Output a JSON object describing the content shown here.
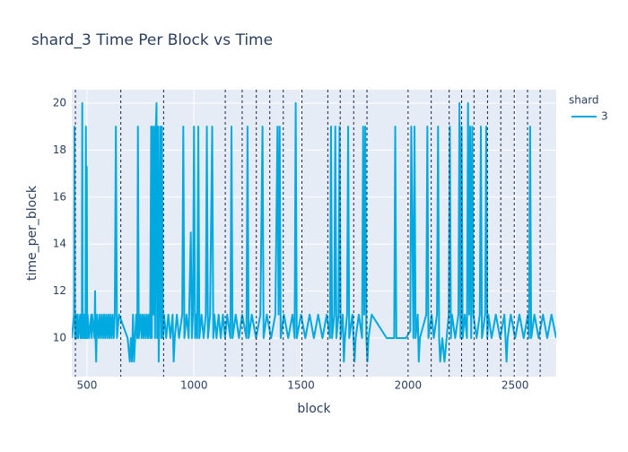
{
  "chart_data": {
    "type": "line",
    "title": "shard_3 Time Per Block vs Time",
    "x_label": "block",
    "y_label": "time_per_block",
    "legend_title": "shard",
    "legend": "top-right",
    "grid": true,
    "x": [
      429,
      440,
      442,
      444,
      447,
      449,
      451,
      455,
      457,
      459,
      468,
      470,
      472,
      476,
      478,
      480,
      486,
      488,
      490,
      493,
      495,
      497,
      499,
      501,
      503,
      510,
      520,
      522,
      524,
      535,
      538,
      540,
      543,
      545,
      548,
      555,
      560,
      565,
      570,
      575,
      580,
      585,
      590,
      595,
      600,
      605,
      610,
      615,
      620,
      625,
      630,
      635,
      640,
      650,
      690,
      700,
      705,
      710,
      715,
      720,
      725,
      730,
      735,
      738,
      742,
      750,
      755,
      760,
      765,
      770,
      775,
      780,
      785,
      790,
      795,
      800,
      803,
      806,
      810,
      815,
      818,
      822,
      825,
      828,
      832,
      835,
      838,
      842,
      847,
      850,
      855,
      860,
      870,
      880,
      890,
      900,
      905,
      910,
      920,
      930,
      945,
      950,
      955,
      965,
      975,
      985,
      990,
      995,
      1000,
      1005,
      1010,
      1015,
      1020,
      1025,
      1035,
      1045,
      1055,
      1060,
      1065,
      1075,
      1085,
      1090,
      1095,
      1105,
      1115,
      1125,
      1135,
      1145,
      1155,
      1170,
      1175,
      1180,
      1195,
      1210,
      1225,
      1245,
      1250,
      1255,
      1270,
      1290,
      1310,
      1320,
      1325,
      1340,
      1360,
      1380,
      1390,
      1395,
      1400,
      1405,
      1420,
      1440,
      1460,
      1470,
      1475,
      1480,
      1500,
      1520,
      1540,
      1560,
      1580,
      1600,
      1620,
      1635,
      1640,
      1645,
      1655,
      1660,
      1665,
      1675,
      1680,
      1685,
      1695,
      1700,
      1705,
      1715,
      1720,
      1725,
      1740,
      1750,
      1755,
      1770,
      1785,
      1790,
      1795,
      1800,
      1805,
      1810,
      1815,
      1830,
      1900,
      1935,
      1940,
      1945,
      1990,
      2010,
      2015,
      2025,
      2030,
      2035,
      2045,
      2050,
      2055,
      2085,
      2090,
      2095,
      2110,
      2120,
      2135,
      2140,
      2145,
      2150,
      2160,
      2170,
      2180,
      2190,
      2195,
      2200,
      2205,
      2220,
      2235,
      2240,
      2245,
      2250,
      2255,
      2265,
      2275,
      2280,
      2285,
      2290,
      2295,
      2300,
      2305,
      2320,
      2335,
      2340,
      2345,
      2360,
      2365,
      2370,
      2375,
      2390,
      2410,
      2430,
      2450,
      2455,
      2460,
      2465,
      2480,
      2500,
      2520,
      2540,
      2560,
      2565,
      2570,
      2575,
      2590,
      2610,
      2630,
      2650,
      2670,
      2692
    ],
    "series": [
      {
        "name": "3",
        "color": "#00a9e0",
        "values": [
          10,
          11,
          19,
          10,
          11,
          10,
          11,
          10,
          11,
          10,
          11,
          10,
          11,
          10,
          20,
          10,
          11,
          10,
          11,
          10,
          19,
          10,
          17.3,
          10,
          11,
          10,
          11,
          10,
          11,
          10,
          12,
          10,
          9,
          10,
          11,
          10,
          11,
          10,
          11,
          10,
          11,
          10,
          11,
          10,
          11,
          10,
          11,
          10,
          11,
          10,
          11,
          19,
          10,
          11,
          10,
          9,
          10,
          9,
          11,
          9,
          10,
          11,
          10,
          19,
          10,
          11,
          10,
          11,
          10,
          11,
          10,
          11,
          10,
          11,
          10,
          19,
          10,
          19,
          11,
          19,
          10,
          19,
          20,
          10,
          19,
          9,
          11,
          19,
          10,
          19,
          10,
          11,
          10,
          11,
          10,
          11,
          9,
          10,
          11,
          10,
          11,
          19,
          10,
          11,
          10,
          14.5,
          10,
          11,
          19,
          10,
          11,
          10,
          19,
          10,
          11,
          10,
          11,
          19,
          10,
          11,
          19,
          10,
          11,
          10,
          11,
          10,
          11,
          10,
          11,
          10,
          19,
          10,
          11,
          10,
          11,
          10,
          19,
          10,
          11,
          10,
          11,
          19,
          10,
          11,
          10,
          11,
          19,
          11,
          19,
          10,
          11,
          10,
          11,
          10,
          20,
          10,
          11,
          10,
          11,
          10,
          11,
          10,
          11,
          10,
          19,
          10,
          11,
          19,
          10,
          11,
          19,
          10,
          11,
          9,
          10,
          11,
          19,
          10,
          11,
          9,
          10,
          11,
          10,
          19,
          11,
          19,
          10,
          9,
          10,
          11,
          10,
          10,
          19,
          10,
          10,
          10.3,
          19,
          10,
          19,
          10,
          11,
          9,
          10,
          11,
          19,
          10,
          11,
          10,
          11,
          19,
          10,
          9,
          10,
          9,
          10,
          11,
          19,
          10,
          11,
          10,
          11,
          20,
          10,
          19,
          10,
          11,
          10,
          20,
          11,
          19,
          10,
          19,
          11,
          10,
          11,
          19,
          10,
          11,
          19,
          10,
          11,
          10,
          11,
          10,
          11,
          10,
          9,
          10,
          11,
          10,
          11,
          10,
          11,
          10,
          19,
          10,
          11,
          10,
          11,
          10,
          11,
          10
        ]
      }
    ],
    "vlines": [
      446,
      658,
      858,
      1146,
      1225,
      1291,
      1354,
      1417,
      1504,
      1625,
      1683,
      1746,
      1808,
      2000,
      2108,
      2192,
      2250,
      2308,
      2371,
      2433,
      2496,
      2558,
      2617
    ],
    "xlim": [
      429,
      2692
    ],
    "ylim": [
      8.36,
      20.57
    ],
    "xticks": [
      500,
      1000,
      1500,
      2000,
      2500
    ],
    "yticks": [
      10,
      12,
      14,
      16,
      18,
      20
    ]
  }
}
